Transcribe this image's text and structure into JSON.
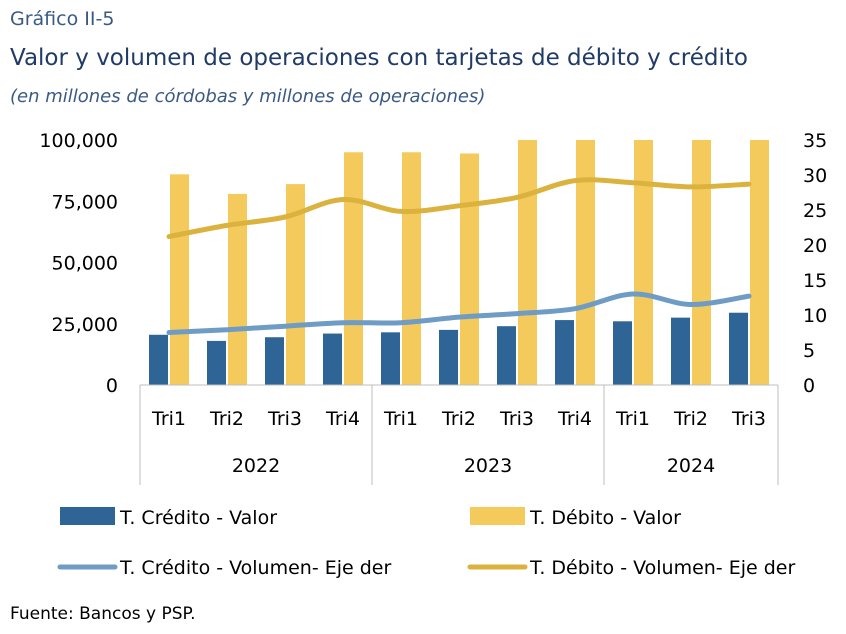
{
  "kicker": "Gráfico II-5",
  "title": "Valor y volumen de operaciones con tarjetas de débito y crédito",
  "subtitle": "(en millones de córdobas y millones de operaciones)",
  "source": "Fuente: Bancos y PSP.",
  "colors": {
    "credito_bar": "#2e6596",
    "debito_bar": "#f5ca5c",
    "credito_line": "#6f9cc4",
    "debito_line": "#dcb23e",
    "grid": "#bfbfbf"
  },
  "chart_data": {
    "type": "bar",
    "categories": [
      "Tri1",
      "Tri2",
      "Tri3",
      "Tri4",
      "Tri1",
      "Tri2",
      "Tri3",
      "Tri4",
      "Tri1",
      "Tri2",
      "Tri3"
    ],
    "groups": [
      {
        "label": "2022",
        "count": 4
      },
      {
        "label": "2023",
        "count": 4
      },
      {
        "label": "2024",
        "count": 3
      }
    ],
    "y_left": {
      "ticks": [
        "0",
        "25,000",
        "50,000",
        "75,000",
        "100,000"
      ],
      "ylim": [
        0,
        100000
      ]
    },
    "y_right": {
      "ticks": [
        "0",
        "5",
        "10",
        "15",
        "20",
        "25",
        "30",
        "35"
      ],
      "ylim": [
        0,
        35
      ]
    },
    "series": [
      {
        "name": "T. Crédito - Valor",
        "type": "bar",
        "axis": "left",
        "values": [
          20500,
          18000,
          19500,
          21000,
          21500,
          22500,
          24000,
          26500,
          26000,
          27500,
          29500
        ]
      },
      {
        "name": "T. Débito - Valor",
        "type": "bar",
        "axis": "left",
        "values": [
          86000,
          78000,
          82000,
          95000,
          95000,
          94500,
          100000,
          100000,
          100000,
          100000,
          100000
        ]
      },
      {
        "name": "T. Crédito - Volumen- Eje der",
        "type": "line",
        "axis": "right",
        "values": [
          7.5,
          7.9,
          8.4,
          8.9,
          8.9,
          9.7,
          10.2,
          10.9,
          13.0,
          11.5,
          12.7
        ]
      },
      {
        "name": "T. Débito - Volumen- Eje der",
        "type": "line",
        "axis": "right",
        "values": [
          21.2,
          22.8,
          24.0,
          26.5,
          24.8,
          25.6,
          26.8,
          29.2,
          28.9,
          28.3,
          28.7
        ]
      }
    ],
    "legend_position": "bottom",
    "grid": false
  }
}
